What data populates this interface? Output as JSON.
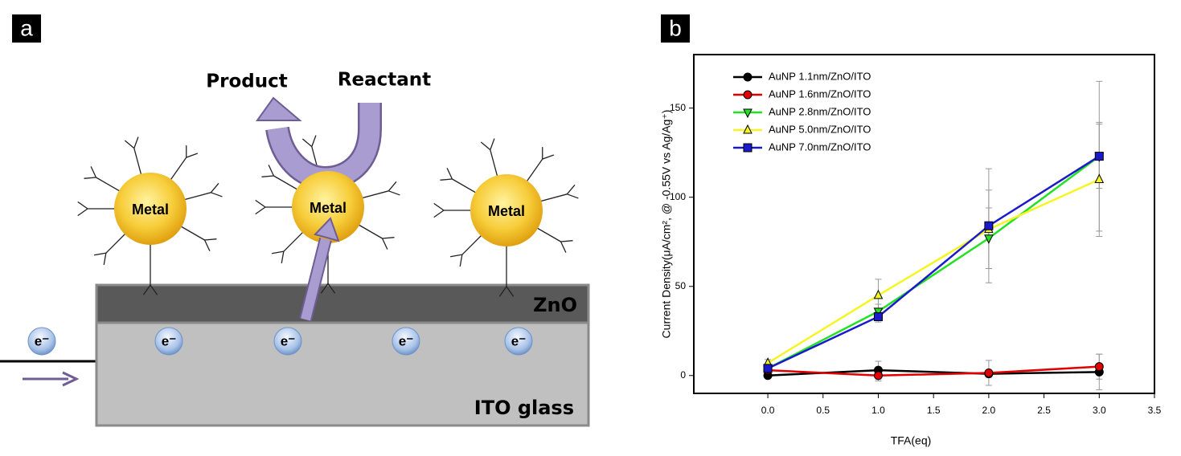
{
  "diagram": {
    "panel_label": "a",
    "product": "Product",
    "reactant": "Reactant",
    "metals": [
      "Metal",
      "Metal",
      "Metal"
    ],
    "zno": "ZnO",
    "ito": "ITO glass",
    "electrons": [
      "e⁻",
      "e⁻",
      "e⁻",
      "e⁻",
      "e⁻"
    ]
  },
  "chart_data": {
    "type": "line",
    "panel_label": "b",
    "x_label": "TFA(eq)",
    "y_label": "Current Density(μA/cm², @ -0.55V vs Ag/Ag⁺)",
    "x": [
      0,
      1,
      2,
      3
    ],
    "xlim": [
      -0.67,
      3.5
    ],
    "ylim": [
      -10,
      180
    ],
    "xticks": [
      {
        "value": 0,
        "label": "0.0"
      },
      {
        "value": 0.5,
        "label": "0.5"
      },
      {
        "value": 1,
        "label": "1.0"
      },
      {
        "value": 1.5,
        "label": "1.5"
      },
      {
        "value": 2,
        "label": "2.0"
      },
      {
        "value": 2.5,
        "label": "2.5"
      },
      {
        "value": 3,
        "label": "3.0"
      },
      {
        "value": 3.5,
        "label": "3.5"
      }
    ],
    "yticks": [
      0,
      50,
      100,
      150
    ],
    "legend": "upper left",
    "series": [
      {
        "name": "AuNP 1.1nm/ZnO/ITO",
        "color": "#000000",
        "marker": "circle",
        "values": [
          0,
          3,
          1,
          2
        ],
        "errors": [
          1,
          5,
          2,
          10
        ]
      },
      {
        "name": "AuNP 1.6nm/ZnO/ITO",
        "color": "#e00000",
        "marker": "circle",
        "values": [
          3,
          0,
          1.5,
          5
        ],
        "errors": [
          1,
          3,
          7,
          7
        ]
      },
      {
        "name": "AuNP 2.8nm/ZnO/ITO",
        "color": "#22e022",
        "marker": "triangle-down",
        "values": [
          4,
          36,
          77,
          123
        ],
        "errors": [
          2,
          4,
          17,
          18
        ]
      },
      {
        "name": "AuNP 5.0nm/ZnO/ITO",
        "color": "#f5f522",
        "marker": "triangle-up",
        "values": [
          7,
          45,
          82,
          110
        ],
        "errors": [
          2,
          9,
          22,
          32
        ]
      },
      {
        "name": "AuNP 7.0nm/ZnO/ITO",
        "color": "#1a1acc",
        "marker": "square",
        "values": [
          4,
          33,
          84,
          123
        ],
        "errors": [
          2,
          3,
          32,
          42
        ]
      }
    ]
  }
}
